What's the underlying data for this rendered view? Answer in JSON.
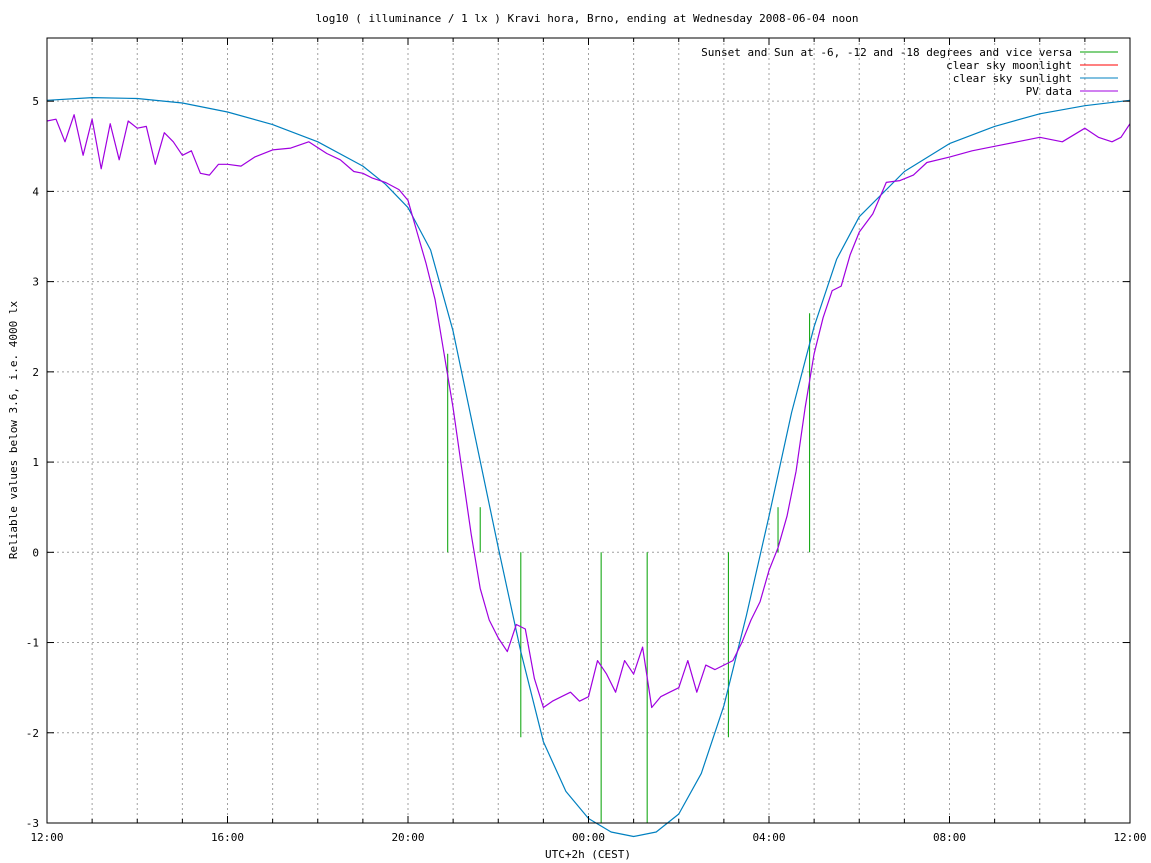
{
  "chart_data": {
    "type": "line",
    "title": "log10 ( illuminance / 1 lx ) Kravi hora, Brno, ending at Wednesday 2008-06-04 noon",
    "xlabel": "UTC+2h (CEST)",
    "ylabel": "Reliable values below 3.6, i.e. 4000 lx",
    "x_unit": "hours since 12:00 CEST 2008-06-03",
    "xlim": [
      0,
      24
    ],
    "ylim": [
      -3,
      5.7
    ],
    "x_ticks": [
      {
        "value": 0,
        "label": "12:00"
      },
      {
        "value": 4,
        "label": "16:00"
      },
      {
        "value": 8,
        "label": "20:00"
      },
      {
        "value": 12,
        "label": "00:00"
      },
      {
        "value": 16,
        "label": "04:00"
      },
      {
        "value": 20,
        "label": "08:00"
      },
      {
        "value": 24,
        "label": "12:00"
      }
    ],
    "y_ticks": [
      {
        "value": 5,
        "label": "5"
      },
      {
        "value": 4,
        "label": "4"
      },
      {
        "value": 3,
        "label": "3"
      },
      {
        "value": 2,
        "label": "2"
      },
      {
        "value": 1,
        "label": "1"
      },
      {
        "value": 0,
        "label": "0"
      },
      {
        "value": -1,
        "label": "-1"
      },
      {
        "value": -2,
        "label": "-2"
      },
      {
        "value": -3,
        "label": "-3"
      }
    ],
    "grid": true,
    "legend_position": "top-right",
    "legend": [
      {
        "name": "Sunset and Sun at -6, -12 and -18 degrees and vice versa",
        "color": "#00a000"
      },
      {
        "name": "clear sky moonlight",
        "color": "#ff0000"
      },
      {
        "name": "clear sky sunlight",
        "color": "#0080c0"
      },
      {
        "name": "PV data",
        "color": "#a000e0"
      }
    ],
    "series": [
      {
        "name": "clear sky sunlight",
        "color": "#0080c0",
        "x": [
          0,
          1,
          2,
          3,
          4,
          5,
          6,
          7,
          7.5,
          8,
          8.5,
          9,
          9.5,
          10,
          10.5,
          11,
          11.5,
          12,
          12.5,
          13,
          13.5,
          14,
          14.5,
          15,
          15.5,
          16,
          16.5,
          17,
          17.5,
          18,
          19,
          20,
          21,
          22,
          23,
          24
        ],
        "values": [
          5.01,
          5.04,
          5.03,
          4.98,
          4.88,
          4.74,
          4.55,
          4.28,
          4.08,
          3.82,
          3.35,
          2.45,
          1.25,
          0.05,
          -1.1,
          -2.1,
          -2.65,
          -2.95,
          -3.1,
          -3.15,
          -3.1,
          -2.9,
          -2.45,
          -1.7,
          -0.7,
          0.4,
          1.55,
          2.5,
          3.25,
          3.72,
          4.22,
          4.53,
          4.72,
          4.86,
          4.95,
          5.01
        ]
      },
      {
        "name": "PV data",
        "color": "#a000e0",
        "x": [
          0,
          0.2,
          0.4,
          0.6,
          0.8,
          1.0,
          1.2,
          1.4,
          1.6,
          1.8,
          2.0,
          2.2,
          2.4,
          2.6,
          2.8,
          3.0,
          3.2,
          3.4,
          3.6,
          3.8,
          4.0,
          4.3,
          4.6,
          5.0,
          5.4,
          5.8,
          6.2,
          6.5,
          6.8,
          7.0,
          7.2,
          7.5,
          7.8,
          8.0,
          8.2,
          8.4,
          8.6,
          8.8,
          9.0,
          9.2,
          9.4,
          9.6,
          9.8,
          10.0,
          10.2,
          10.4,
          10.6,
          10.8,
          11.0,
          11.2,
          11.4,
          11.6,
          11.8,
          12.0,
          12.2,
          12.4,
          12.6,
          12.8,
          13.0,
          13.2,
          13.4,
          13.6,
          13.8,
          14.0,
          14.2,
          14.4,
          14.6,
          14.8,
          15.0,
          15.2,
          15.4,
          15.6,
          15.8,
          16.0,
          16.2,
          16.4,
          16.6,
          16.8,
          17.0,
          17.2,
          17.4,
          17.6,
          17.8,
          18.0,
          18.3,
          18.6,
          18.9,
          19.2,
          19.5,
          20.0,
          20.5,
          21.0,
          21.5,
          22.0,
          22.5,
          23.0,
          23.3,
          23.6,
          23.8,
          24.0
        ],
        "values": [
          4.78,
          4.8,
          4.55,
          4.85,
          4.4,
          4.8,
          4.25,
          4.75,
          4.35,
          4.78,
          4.7,
          4.72,
          4.3,
          4.65,
          4.55,
          4.4,
          4.45,
          4.2,
          4.18,
          4.3,
          4.3,
          4.28,
          4.38,
          4.46,
          4.48,
          4.55,
          4.42,
          4.35,
          4.22,
          4.2,
          4.15,
          4.1,
          4.02,
          3.9,
          3.55,
          3.2,
          2.8,
          2.2,
          1.6,
          0.9,
          0.2,
          -0.4,
          -0.75,
          -0.95,
          -1.1,
          -0.8,
          -0.85,
          -1.4,
          -1.72,
          -1.65,
          -1.6,
          -1.55,
          -1.65,
          -1.6,
          -1.2,
          -1.35,
          -1.55,
          -1.2,
          -1.35,
          -1.05,
          -1.72,
          -1.6,
          -1.55,
          -1.5,
          -1.2,
          -1.55,
          -1.25,
          -1.3,
          -1.25,
          -1.2,
          -1.0,
          -0.75,
          -0.55,
          -0.2,
          0.05,
          0.4,
          0.9,
          1.6,
          2.2,
          2.6,
          2.9,
          2.95,
          3.3,
          3.55,
          3.75,
          4.1,
          4.12,
          4.18,
          4.32,
          4.38,
          4.45,
          4.5,
          4.55,
          4.6,
          4.55,
          4.7,
          4.6,
          4.55,
          4.6,
          4.75
        ]
      },
      {
        "name": "clear sky moonlight",
        "color": "#ff0000",
        "x": [],
        "values": []
      }
    ],
    "events": {
      "name": "Sunset and Sun at -6, -12 and -18 degrees and vice versa",
      "color": "#00a000",
      "x": [
        8.88,
        9.6,
        10.5,
        12.28,
        13.3,
        15.1,
        16.2,
        16.9
      ],
      "y_top": [
        2.2,
        0.5,
        -2.05,
        -3.0,
        -3.0,
        -2.05,
        0.5,
        2.65
      ],
      "y_bottom": [
        0,
        0,
        0,
        0,
        0,
        0,
        0,
        0
      ]
    }
  }
}
